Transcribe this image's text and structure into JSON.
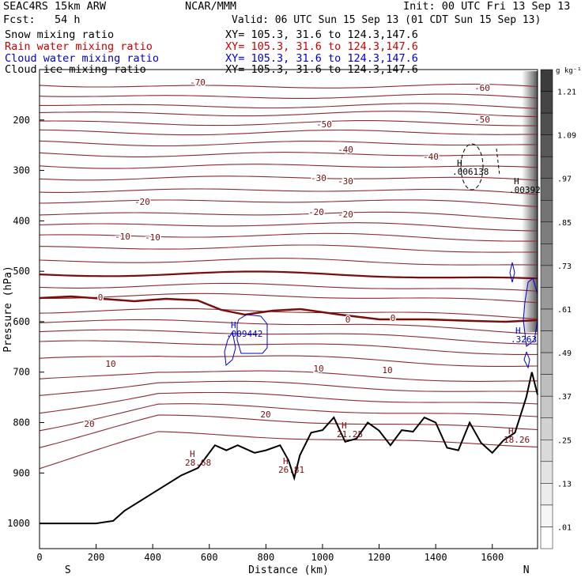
{
  "header": {
    "model": "SEAC4RS 15km ARW",
    "forecast_hours": "Fcst:   54 h",
    "organization": "NCAR/MMM",
    "init_time": "Init: 00 UTC Fri 13 Sep 13",
    "valid_time": "Valid: 06 UTC Sun 15 Sep 13 (01 CDT Sun 15 Sep 13)"
  },
  "fields": [
    {
      "label": "Snow mixing ratio",
      "xy": "",
      "color": "#000000"
    },
    {
      "label": "Rain water mixing ratio",
      "xy": "XY= 105.3, 31.6 to 124.3,147.6",
      "color": "#cc0000"
    },
    {
      "label": "Cloud water mixing ratio",
      "xy": "XY= 105.3, 31.6 to 124.3,147.6",
      "color": "#0000cc"
    },
    {
      "label": "Cloud ice mixing ratio",
      "xy": "XY= 105.3, 31.6 to 124.3,147.6",
      "color": "#000000"
    }
  ],
  "snow_xy": "XY= 105.3, 31.6 to 124.3,147.6",
  "colorbar": {
    "unit": "g kg⁻¹",
    "labels": [
      "1.21",
      "1.09",
      ".97",
      ".85",
      ".73",
      ".61",
      ".49",
      ".37",
      ".25",
      ".13",
      ".01"
    ]
  },
  "chart_data": {
    "type": "cross-section contour",
    "xlabel": "Distance (km)",
    "ylabel": "Pressure (hPa)",
    "xlim": [
      0,
      1760
    ],
    "ylim": [
      1050,
      100
    ],
    "x_ticks": [
      "0",
      "200",
      "400",
      "600",
      "800",
      "1000",
      "1200",
      "1400",
      "1600"
    ],
    "y_ticks": [
      "200",
      "300",
      "400",
      "500",
      "600",
      "700",
      "800",
      "900",
      "1000"
    ],
    "x_end_labels": {
      "left": "S",
      "right": "N"
    },
    "temperature_contour_labels": [
      "-70",
      "-60",
      "-50",
      "-50",
      "-40",
      "-40",
      "-30",
      "-30",
      "-20",
      "-20",
      "-20",
      "-10",
      "-10",
      "0",
      "0",
      "0",
      "10",
      "10",
      "10",
      "20",
      "20"
    ],
    "extrema_labels": [
      {
        "label": "H",
        "value": ".006138"
      },
      {
        "label": "H",
        "value": ".00392"
      },
      {
        "label": "H",
        "value": ".009442"
      },
      {
        "label": "H",
        "value": ".3263"
      },
      {
        "label": "H",
        "value": "28.68"
      },
      {
        "label": "H",
        "value": "26.81"
      },
      {
        "label": "H",
        "value": "21.25"
      },
      {
        "label": "H",
        "value": "18.26"
      }
    ],
    "terrain_pressure": {
      "x_km": [
        0,
        100,
        200,
        260,
        300,
        400,
        500,
        560,
        620,
        660,
        700,
        760,
        800,
        850,
        880,
        900,
        920,
        960,
        1000,
        1040,
        1080,
        1120,
        1160,
        1200,
        1240,
        1280,
        1320,
        1360,
        1400,
        1440,
        1480,
        1520,
        1560,
        1600,
        1640,
        1680,
        1720,
        1740,
        1760
      ],
      "p_hpa": [
        1000,
        1000,
        1000,
        995,
        975,
        940,
        905,
        890,
        845,
        855,
        845,
        860,
        855,
        845,
        875,
        910,
        865,
        820,
        815,
        790,
        838,
        832,
        800,
        816,
        845,
        815,
        818,
        790,
        800,
        850,
        855,
        800,
        840,
        860,
        835,
        820,
        750,
        700,
        745
      ]
    }
  }
}
